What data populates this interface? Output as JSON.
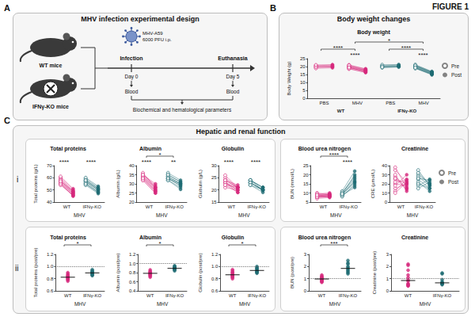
{
  "title": "FIGURE 1",
  "panels": [
    {
      "letter": "A",
      "heading": "MHV infection experimental design",
      "diagram": {
        "mice": [
          "WT mice",
          "IFNγ-KO mice"
        ],
        "virus": [
          "MHV-A59",
          "6000 PFU i.p."
        ],
        "timeline": [
          {
            "event": "Infection",
            "day": "Day 0",
            "sample": "Blood"
          },
          {
            "event": "Euthanasia",
            "day": "Day 5",
            "sample": "Blood"
          }
        ],
        "outcome": "Biochemical and hematological parameters"
      }
    },
    {
      "letter": "B",
      "heading": "Body weight changes"
    },
    {
      "letter": "C",
      "heading": "Hepatic and renal function",
      "rows": [
        "i",
        "ii"
      ]
    }
  ],
  "chart_data": [
    {
      "panel": "B",
      "type": "paired",
      "title": "Body weight",
      "ylabel": "Body Weight (g)",
      "categories": [
        "PBS",
        "MHV",
        "PBS",
        "MHV"
      ],
      "groups": [
        "WT",
        "IFNγ-KO"
      ],
      "colors": [
        "#d6287c",
        "#d6287c",
        "#1e6b73",
        "#1e6b73"
      ],
      "series": [
        {
          "name": "Pre",
          "marker": "circle-open",
          "values": [
            [
              19.5,
              20.1,
              18.9,
              20.6,
              19.8,
              21.0
            ],
            [
              19.2,
              20.0,
              18.5,
              21.0,
              19.6,
              20.4,
              18.8,
              19.9,
              20.8,
              19.4
            ],
            [
              19.9,
              20.5,
              19.3,
              21.1,
              20.2,
              19.6
            ],
            [
              20.1,
              19.5,
              20.8,
              19.0,
              21.2,
              20.4,
              19.8,
              18.9,
              20.6,
              19.3
            ]
          ]
        },
        {
          "name": "Post",
          "marker": "circle",
          "values": [
            [
              19.8,
              20.3,
              19.2,
              20.9,
              20.0,
              21.2
            ],
            [
              17.2,
              17.8,
              16.4,
              18.6,
              17.0,
              17.9,
              16.2,
              17.4,
              18.3,
              16.9
            ],
            [
              20.2,
              20.9,
              19.7,
              21.3,
              20.4,
              19.9
            ],
            [
              16.0,
              15.4,
              16.6,
              15.1,
              16.9,
              16.2,
              15.7,
              14.8,
              16.4,
              15.3
            ]
          ]
        }
      ],
      "line_style": "solid",
      "ylim": [
        0,
        25
      ],
      "yticks": [
        0,
        5,
        10,
        15,
        20,
        25
      ],
      "grid": false,
      "legend": "right",
      "annotations": [
        {
          "text": "****",
          "categories": [
            1
          ]
        },
        {
          "text": "****",
          "categories": [
            3
          ]
        },
        {
          "text": "****",
          "categories": [
            0,
            1
          ]
        },
        {
          "text": "****",
          "categories": [
            2,
            3
          ]
        },
        {
          "text": "*",
          "categories": [
            1,
            3
          ]
        }
      ]
    },
    {
      "panel": "i",
      "type": "paired",
      "title": "Total proteins",
      "ylabel": "Total proteins (g/L)",
      "xlabel": "MHV",
      "categories": [
        "WT",
        "IFNγ-KO"
      ],
      "colors": [
        "#d6287c",
        "#1e6b73"
      ],
      "series": [
        {
          "name": "Pre",
          "marker": "circle-open",
          "values": [
            [
              58,
              56,
              60,
              55,
              57,
              59,
              54,
              61,
              56,
              58,
              55,
              57
            ],
            [
              57,
              59,
              55,
              58,
              56,
              60,
              54,
              57,
              58,
              55
            ]
          ]
        },
        {
          "name": "Post",
          "marker": "circle",
          "values": [
            [
              48,
              46,
              50,
              45,
              47,
              49,
              46,
              51,
              47,
              48,
              45,
              49
            ],
            [
              50,
              52,
              48,
              51,
              49,
              53,
              47,
              50,
              51,
              48
            ]
          ]
        }
      ],
      "line_style": "solid",
      "ylim": [
        40,
        70
      ],
      "yticks": [
        40,
        50,
        60,
        70
      ],
      "grid": false,
      "annotations": [
        {
          "text": "****",
          "categories": [
            0
          ]
        },
        {
          "text": "****",
          "categories": [
            1
          ]
        }
      ]
    },
    {
      "panel": "i",
      "type": "paired",
      "title": "Albumin",
      "ylabel": "Albumin (g/L)",
      "xlabel": "MHV",
      "categories": [
        "WT",
        "IFNγ-KO"
      ],
      "colors": [
        "#d6287c",
        "#1e6b73"
      ],
      "series": [
        {
          "name": "Pre",
          "marker": "circle-open",
          "values": [
            [
              34,
              33,
              35,
              32,
              34,
              36,
              33,
              35,
              32,
              34,
              33,
              35
            ],
            [
              33,
              35,
              32,
              34,
              33,
              36,
              32,
              34,
              35,
              33
            ]
          ]
        },
        {
          "name": "Post",
          "marker": "circle",
          "values": [
            [
              27,
              26,
              29,
              25,
              28,
              28,
              26,
              30,
              25,
              27,
              26,
              28
            ],
            [
              30,
              31,
              28,
              30,
              29,
              32,
              27,
              30,
              31,
              29
            ]
          ]
        }
      ],
      "line_style": "solid",
      "ylim": [
        20,
        40
      ],
      "yticks": [
        20,
        25,
        30,
        35,
        40
      ],
      "grid": false,
      "annotations": [
        {
          "text": "****",
          "categories": [
            0
          ]
        },
        {
          "text": "**",
          "categories": [
            1
          ]
        },
        {
          "text": "*",
          "categories": [
            0,
            1
          ]
        }
      ]
    },
    {
      "panel": "i",
      "type": "paired",
      "title": "Globulin",
      "ylabel": "Globulin (g/L)",
      "xlabel": "MHV",
      "categories": [
        "WT",
        "IFNγ-KO"
      ],
      "colors": [
        "#d6287c",
        "#1e6b73"
      ],
      "series": [
        {
          "name": "Pre",
          "marker": "circle-open",
          "values": [
            [
              24,
              23,
              25,
              23,
              23,
              23,
              21,
              26,
              24,
              24,
              22,
              22
            ],
            [
              24,
              24,
              23,
              24,
              23,
              24,
              22,
              23,
              23,
              22
            ]
          ]
        },
        {
          "name": "Post",
          "marker": "circle",
          "values": [
            [
              21,
              20,
              21,
              20,
              19,
              21,
              20,
              21,
              22,
              21,
              19,
              21
            ],
            [
              20,
              21,
              20,
              21,
              20,
              21,
              20,
              20,
              20,
              19
            ]
          ]
        }
      ],
      "line_style": "solid",
      "ylim": [
        15,
        30
      ],
      "yticks": [
        15,
        20,
        25,
        30
      ],
      "grid": false,
      "annotations": [
        {
          "text": "****",
          "categories": [
            0
          ]
        },
        {
          "text": "****",
          "categories": [
            1
          ]
        }
      ]
    },
    {
      "panel": "i",
      "type": "paired",
      "title": "Blood urea nitrogen",
      "ylabel": "BUN (mmol/L)",
      "xlabel": "MHV",
      "categories": [
        "WT",
        "IFNγ-KO"
      ],
      "colors": [
        "#d6287c",
        "#1e6b73"
      ],
      "series": [
        {
          "name": "Pre",
          "marker": "circle-open",
          "values": [
            [
              8,
              9,
              7.5,
              10,
              8.5,
              9,
              7,
              8,
              9.5,
              8,
              7.8,
              8.8
            ],
            [
              9,
              10,
              8.5,
              9.5,
              8,
              11,
              9.2,
              8.8,
              10.2,
              9.5
            ]
          ]
        },
        {
          "name": "Post",
          "marker": "circle",
          "values": [
            [
              8.5,
              9.5,
              8,
              9,
              9.2,
              8.2,
              7.5,
              8.8,
              10,
              8.4,
              7.9,
              9.1
            ],
            [
              16,
              18,
              14,
              20,
              15,
              22,
              17,
              13,
              19,
              16
            ]
          ]
        }
      ],
      "line_style": "solid",
      "ylim": [
        5,
        25
      ],
      "yticks": [
        5,
        10,
        15,
        20,
        25
      ],
      "grid": false,
      "annotations": [
        {
          "text": "****",
          "categories": [
            1
          ]
        },
        {
          "text": "****",
          "categories": [
            0,
            1
          ]
        }
      ]
    },
    {
      "panel": "i",
      "type": "paired",
      "title": "Creatinine",
      "ylabel": "CRE (µmol/L)",
      "xlabel": "MHV",
      "categories": [
        "WT",
        "IFNγ-KO"
      ],
      "colors": [
        "#d6287c",
        "#1e6b73"
      ],
      "series": [
        {
          "name": "Pre",
          "marker": "circle-open",
          "values": [
            [
              20,
              35,
              15,
              28,
              12,
              30,
              25,
              18,
              38,
              22,
              10,
              26
            ],
            [
              25,
              30,
              18,
              35,
              22,
              15,
              28,
              20,
              32,
              26
            ]
          ]
        },
        {
          "name": "Post",
          "marker": "circle",
          "values": [
            [
              18,
              22,
              20,
              15,
              25,
              12,
              20,
              30,
              16,
              24,
              22,
              14
            ],
            [
              15,
              20,
              25,
              18,
              12,
              22,
              18,
              15,
              20,
              24
            ]
          ]
        }
      ],
      "line_style": "solid",
      "ylim": [
        0,
        40
      ],
      "yticks": [
        0,
        10,
        20,
        30,
        40
      ],
      "grid": false,
      "legend": "right",
      "annotations": []
    },
    {
      "panel": "ii",
      "type": "scatter",
      "title": "Total proteins",
      "ylabel": "Total proteins (post/pre)",
      "xlabel": "MHV",
      "categories": [
        "WT",
        "IFNγ-KO"
      ],
      "colors": [
        "#d6287c",
        "#1e6b73"
      ],
      "marker": "circle",
      "values": [
        [
          0.78,
          0.82,
          0.86,
          0.8,
          0.84,
          0.88,
          0.76,
          0.83,
          0.9,
          0.81,
          0.85,
          0.79
        ],
        [
          0.88,
          0.9,
          0.85,
          0.92,
          0.87,
          0.95,
          0.86,
          0.91,
          0.89,
          0.93
        ]
      ],
      "median": [
        0.825,
        0.895
      ],
      "reference": 1,
      "ylim": [
        0.6,
        1.2
      ],
      "yticks": [
        0.6,
        0.8,
        {
          "value": 1,
          "label": "1.0"
        },
        1.2
      ],
      "grid": false,
      "annotations": [
        {
          "text": "*",
          "categories": [
            0,
            1
          ]
        }
      ]
    },
    {
      "panel": "ii",
      "type": "scatter",
      "title": "Albumin",
      "ylabel": "Albumin (post/pre)",
      "xlabel": "MHV",
      "categories": [
        "WT",
        "IFNγ-KO"
      ],
      "colors": [
        "#d6287c",
        "#1e6b73"
      ],
      "marker": "circle",
      "values": [
        [
          0.79,
          0.75,
          0.83,
          0.72,
          0.8,
          0.78,
          0.76,
          0.86,
          0.7,
          0.79,
          0.74,
          0.82
        ],
        [
          0.91,
          0.89,
          0.88,
          0.92,
          0.86,
          0.95,
          0.84,
          0.9,
          0.94,
          0.87
        ]
      ],
      "median": [
        0.785,
        0.895
      ],
      "reference": 1,
      "ylim": [
        0.4,
        1.2
      ],
      "yticks": [
        0.4,
        0.6,
        0.8,
        {
          "value": 1,
          "label": "1.0"
        },
        1.2
      ],
      "grid": false,
      "annotations": [
        {
          "text": "*",
          "categories": [
            0,
            1
          ]
        }
      ]
    },
    {
      "panel": "ii",
      "type": "scatter",
      "title": "Globulin",
      "ylabel": "Globulin (post/pre)",
      "xlabel": "MHV",
      "categories": [
        "WT",
        "IFNγ-KO"
      ],
      "colors": [
        "#d6287c",
        "#1e6b73"
      ],
      "marker": "circle",
      "values": [
        [
          0.88,
          0.85,
          0.84,
          0.9,
          0.82,
          0.93,
          0.8,
          0.86,
          0.95,
          0.87,
          0.83,
          0.91
        ],
        [
          0.92,
          0.96,
          0.9,
          0.98,
          0.93,
          0.89,
          0.97,
          0.94,
          1.0,
          0.91
        ]
      ],
      "median": [
        0.865,
        0.935
      ],
      "reference": 1,
      "ylim": [
        0.6,
        1.2
      ],
      "yticks": [
        0.6,
        0.8,
        {
          "value": 1,
          "label": "1.0"
        },
        1.2
      ],
      "grid": false,
      "annotations": [
        {
          "text": "*",
          "categories": [
            0,
            1
          ]
        }
      ]
    },
    {
      "panel": "ii",
      "type": "scatter",
      "title": "Blood urea nitrogen",
      "ylabel": "BUN (post/pre)",
      "xlabel": "MHV",
      "categories": [
        "WT",
        "IFNγ-KO"
      ],
      "colors": [
        "#d6287c",
        "#1e6b73"
      ],
      "marker": "circle",
      "values": [
        [
          0.8,
          1.1,
          0.95,
          1.2,
          0.7,
          1.05,
          0.9,
          1.15,
          0.85,
          1.0,
          0.75,
          1.3
        ],
        [
          1.8,
          1.6,
          2.2,
          1.5,
          2.5,
          1.7,
          2.0,
          1.4,
          1.9,
          2.3
        ]
      ],
      "median": [
        0.975,
        1.85
      ],
      "reference": 1,
      "ylim": [
        0,
        3
      ],
      "yticks": [
        0,
        1,
        2,
        3
      ],
      "grid": false,
      "annotations": [
        {
          "text": "***",
          "categories": [
            0,
            1
          ]
        }
      ]
    },
    {
      "panel": "ii",
      "type": "scatter",
      "title": "Creatinine",
      "ylabel": "Creatinine (post/pre)",
      "xlabel": "MHV",
      "categories": [
        "WT",
        "IFNγ-KO"
      ],
      "colors": [
        "#d6287c",
        "#1e6b73"
      ],
      "marker": "circle",
      "values": [
        [
          0.9,
          0.6,
          1.3,
          0.5,
          2.1,
          0.4,
          0.8,
          1.7,
          0.42,
          1.1,
          2.2,
          0.54
        ],
        [
          0.6,
          0.67,
          1.4,
          0.51,
          0.55,
          1.47,
          0.64,
          0.75,
          0.62,
          0.92
        ]
      ],
      "median": [
        0.85,
        0.66
      ],
      "reference": 1,
      "ylim": [
        0,
        3
      ],
      "yticks": [
        0,
        1,
        2,
        3
      ],
      "grid": false,
      "annotations": []
    }
  ]
}
